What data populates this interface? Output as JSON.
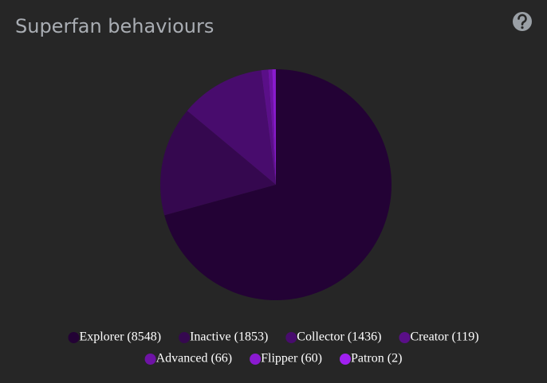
{
  "chart_data": {
    "type": "pie",
    "title": "Superfan behaviours",
    "categories": [
      "Explorer (8548)",
      "Inactive (1853)",
      "Collector (1436)",
      "Creator (119)",
      "Advanced (66)",
      "Flipper (60)",
      "Patron (2)"
    ],
    "values": [
      8548,
      1853,
      1436,
      119,
      66,
      60,
      2
    ],
    "colors": [
      "#230235",
      "#35084f",
      "#480c6d",
      "#5a0f88",
      "#6e13a5",
      "#8a1ad0",
      "#a020f0"
    ],
    "legend": "bottom"
  }
}
